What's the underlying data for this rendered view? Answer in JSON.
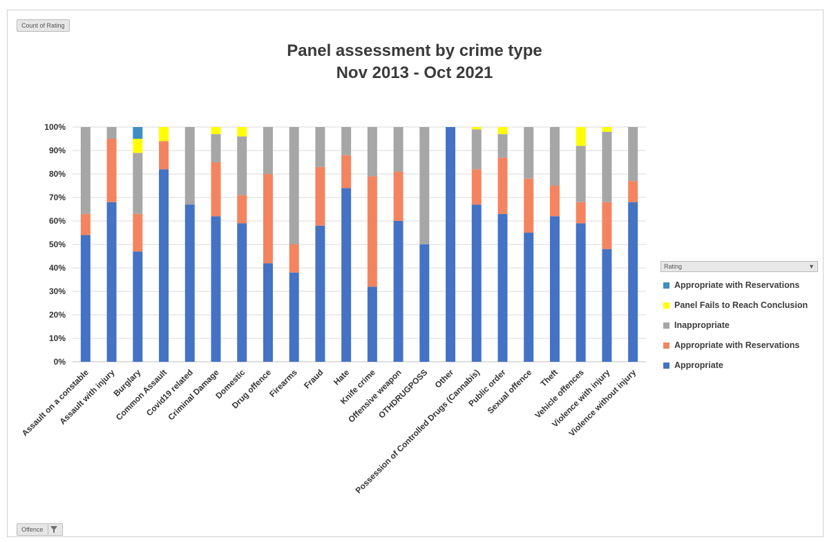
{
  "pivot": {
    "count_button": "Count of Rating",
    "offence_button": "Offence",
    "legend_header": "Rating"
  },
  "colors": {
    "Appropriate": "#4472C4",
    "Appropriate with Reservations": "#F4845F",
    "Inappropriate": "#A6A6A6",
    "Panel Fails to Reach Conclusion": "#FFFF00",
    "Appropriate with Reservations (top)": "#3E8EC4"
  },
  "chart_data": {
    "type": "bar",
    "stacked": "percent",
    "title": "Panel assessment by crime type",
    "subtitle": "Nov 2013 - Oct 2021",
    "xlabel": "",
    "ylabel": "",
    "ylim": [
      0,
      100
    ],
    "yticks": [
      "0%",
      "10%",
      "20%",
      "30%",
      "40%",
      "50%",
      "60%",
      "70%",
      "80%",
      "90%",
      "100%"
    ],
    "grid": true,
    "legend_position": "right",
    "legend": [
      "Appropriate with Reservations",
      "Panel Fails to Reach Conclusion",
      "Inappropriate",
      "Appropriate with Reservations",
      "Appropriate"
    ],
    "categories": [
      "Assault on a constable",
      "Assault with injury",
      "Burglary",
      "Common Assault",
      "Covid19 related",
      "Criminal Damage",
      "Domestic",
      "Drug offence",
      "Firearms",
      "Fraud",
      "Hate",
      "Knife crime",
      "Offensive weapon",
      "OTHDRUGPOSS",
      "Other",
      "Possession of Controlled Drugs (Cannabis)",
      "Public order",
      "Sexual offence",
      "Theft",
      "Vehicle offences",
      "Violence with injury",
      "Violence without injury"
    ],
    "series": [
      {
        "name": "Appropriate",
        "color": "#4472C4",
        "values": [
          54,
          68,
          47,
          82,
          67,
          62,
          59,
          42,
          38,
          58,
          74,
          32,
          60,
          50,
          100,
          67,
          63,
          55,
          62,
          59,
          48,
          68
        ]
      },
      {
        "name": "Appropriate with Reservations",
        "color": "#F4845F",
        "values": [
          9,
          27,
          16,
          12,
          0,
          23,
          12,
          38,
          12,
          25,
          14,
          47,
          21,
          0,
          0,
          15,
          24,
          23,
          13,
          9,
          20,
          9
        ]
      },
      {
        "name": "Inappropriate",
        "color": "#A6A6A6",
        "values": [
          37,
          5,
          26,
          0,
          33,
          12,
          25,
          20,
          50,
          17,
          12,
          21,
          19,
          50,
          0,
          17,
          10,
          22,
          25,
          24,
          30,
          23
        ]
      },
      {
        "name": "Panel Fails to Reach Conclusion",
        "color": "#FFFF00",
        "values": [
          0,
          0,
          6,
          6,
          0,
          3,
          4,
          0,
          0,
          0,
          0,
          0,
          0,
          0,
          0,
          1,
          3,
          0,
          0,
          8,
          2,
          0
        ]
      },
      {
        "name": "Appropriate with Reservations",
        "color": "#3E8EC4",
        "values": [
          0,
          0,
          5,
          0,
          0,
          0,
          0,
          0,
          0,
          0,
          0,
          0,
          0,
          0,
          0,
          0,
          0,
          0,
          0,
          0,
          0,
          0
        ]
      }
    ]
  }
}
